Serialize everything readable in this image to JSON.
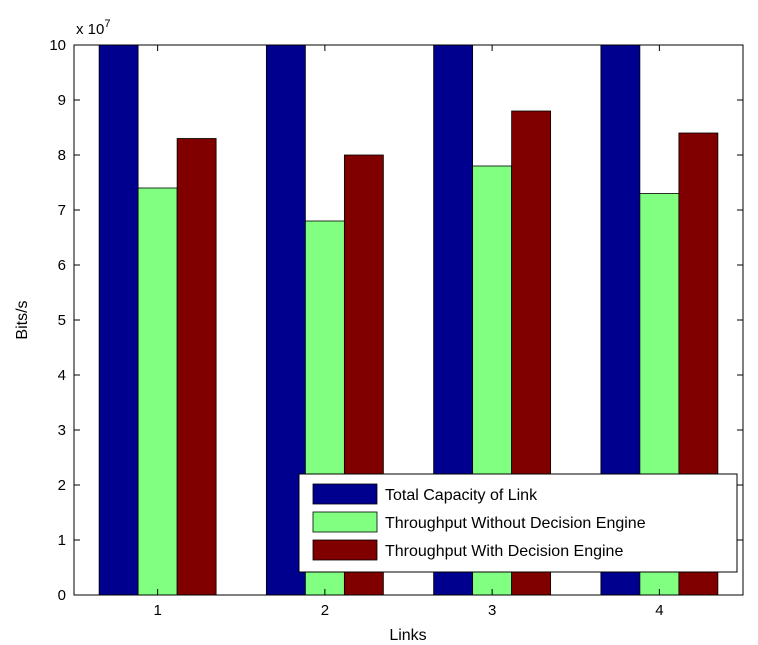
{
  "chart_data": {
    "type": "bar",
    "xlabel": "Links",
    "ylabel": "Bits/s",
    "y_multiplier_label": "x 10",
    "y_multiplier_exponent": "7",
    "categories": [
      "1",
      "2",
      "3",
      "4"
    ],
    "ylim": [
      0,
      10
    ],
    "yticks": [
      "0",
      "1",
      "2",
      "3",
      "4",
      "5",
      "6",
      "7",
      "8",
      "9",
      "10"
    ],
    "grid": false,
    "legend_position": "bottom-right",
    "series": [
      {
        "name": "Total Capacity of Link",
        "color": "#00008f",
        "values": [
          10,
          10,
          10,
          10
        ]
      },
      {
        "name": "Throughput Without Decision Engine",
        "color": "#80ff80",
        "values": [
          7.4,
          6.8,
          7.8,
          7.3
        ]
      },
      {
        "name": "Throughput With Decision Engine",
        "color": "#800000",
        "values": [
          8.3,
          8.0,
          8.8,
          8.4
        ]
      }
    ]
  }
}
